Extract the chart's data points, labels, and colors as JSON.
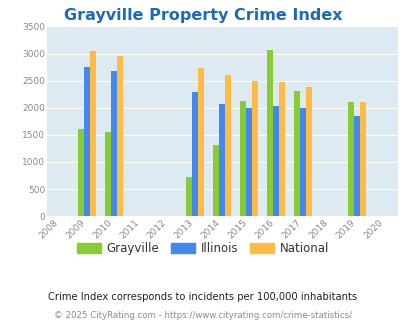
{
  "title": "Grayville Property Crime Index",
  "title_color": "#1a6abf",
  "subtitle": "Crime Index corresponds to incidents per 100,000 inhabitants",
  "footer": "© 2025 CityRating.com - https://www.cityrating.com/crime-statistics/",
  "years": [
    2009,
    2010,
    2013,
    2014,
    2015,
    2016,
    2017,
    2019
  ],
  "grayville": [
    1600,
    1560,
    730,
    1320,
    2130,
    3070,
    2310,
    2110
  ],
  "illinois": [
    2760,
    2680,
    2290,
    2060,
    1990,
    2040,
    2000,
    1840
  ],
  "national": [
    3040,
    2955,
    2730,
    2600,
    2500,
    2470,
    2380,
    2110
  ],
  "grayville_color": "#88cc33",
  "illinois_color": "#4488ee",
  "national_color": "#ffbb44",
  "xmin": 2007.5,
  "xmax": 2020.5,
  "ymin": 0,
  "ymax": 3500,
  "yticks": [
    0,
    500,
    1000,
    1500,
    2000,
    2500,
    3000,
    3500
  ],
  "xticks": [
    2008,
    2009,
    2010,
    2011,
    2012,
    2013,
    2014,
    2015,
    2016,
    2017,
    2018,
    2019,
    2020
  ],
  "background_color": "#ddeaf2",
  "bar_width": 0.22,
  "legend_labels": [
    "Grayville",
    "Illinois",
    "National"
  ],
  "grid_color": "#ffffff",
  "subtitle_color": "#222222",
  "footer_color": "#8888aa"
}
